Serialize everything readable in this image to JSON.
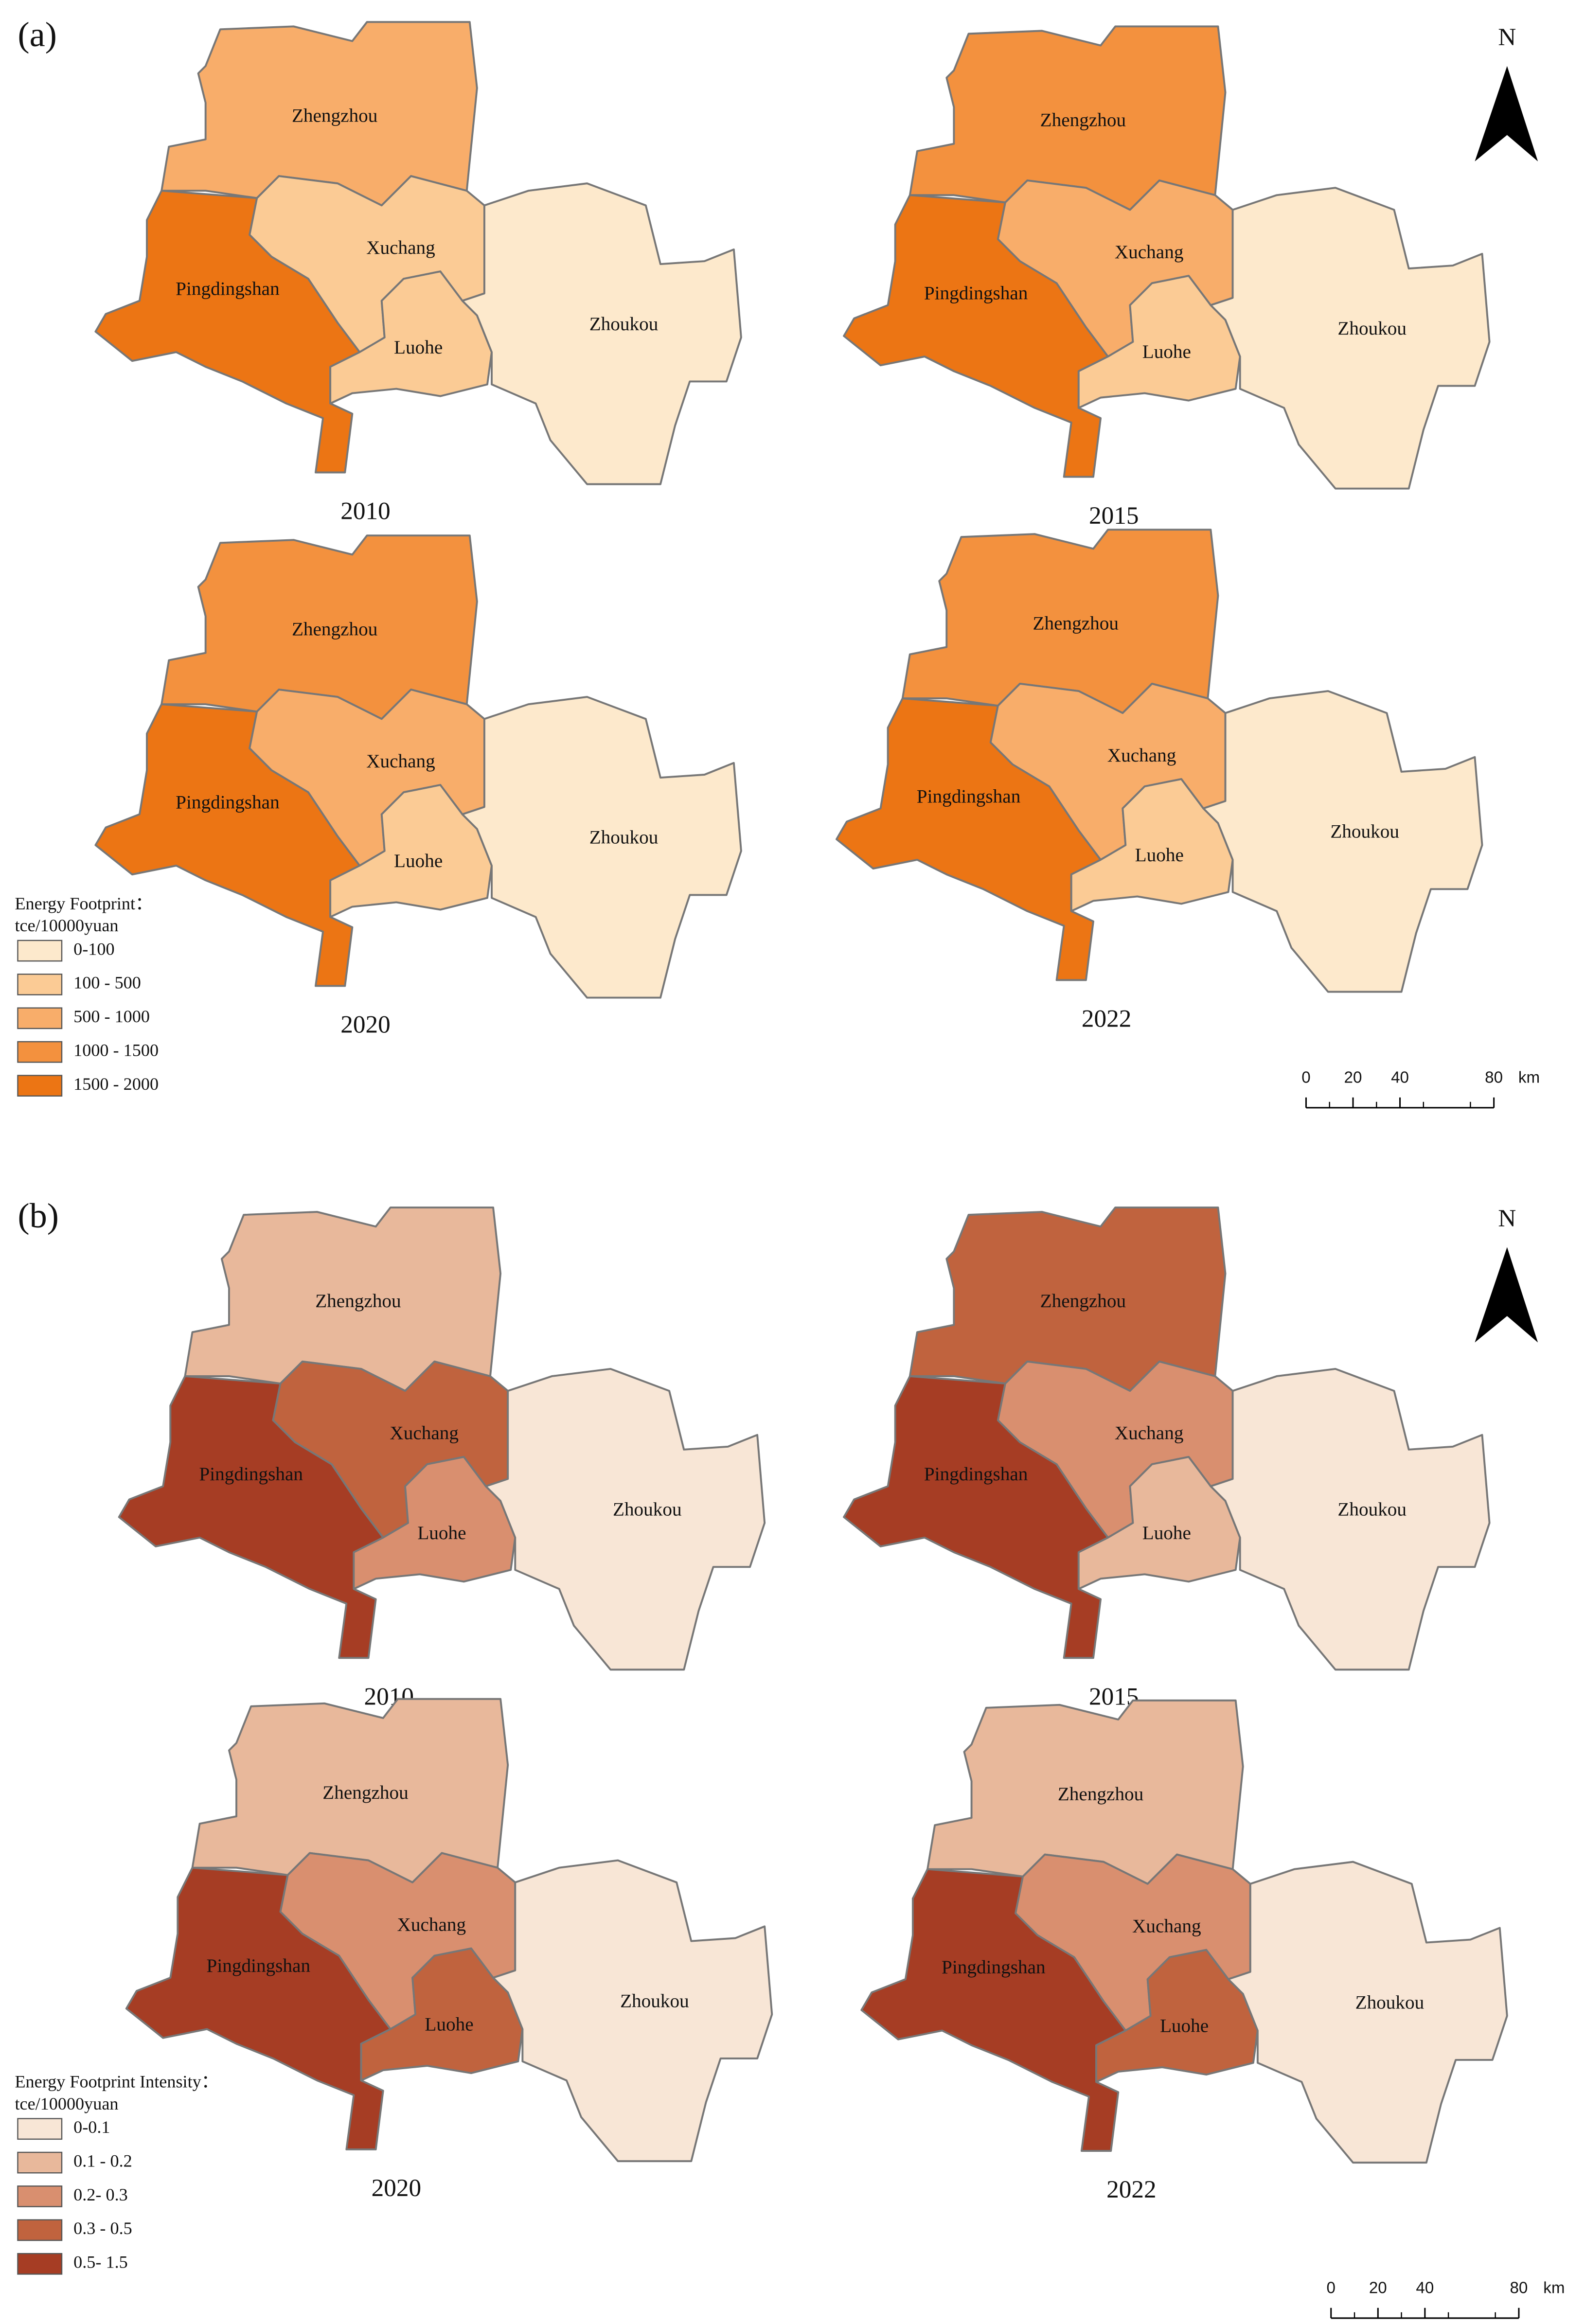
{
  "panels": [
    {
      "label": "(a)",
      "north": "N",
      "legend": {
        "title": "Energy Footprint：",
        "unit": "tce/10000yuan",
        "classes": [
          {
            "label": "0-100",
            "color": "#fde9cc"
          },
          {
            "label": "100 - 500",
            "color": "#fbcb95"
          },
          {
            "label": "500 - 1000",
            "color": "#f8ad6a"
          },
          {
            "label": "1000 - 1500",
            "color": "#f3913e"
          },
          {
            "label": "1500 - 2000",
            "color": "#ec7514"
          }
        ]
      },
      "scale_ticks": [
        0,
        20,
        40,
        80
      ],
      "scale_unit": "km",
      "maps": [
        {
          "year": "2010",
          "regions": [
            {
              "name": "Zhengzhou",
              "fill": "#f8ad6a"
            },
            {
              "name": "Pingdingshan",
              "fill": "#ec7514"
            },
            {
              "name": "Xuchang",
              "fill": "#fbcb95"
            },
            {
              "name": "Luohe",
              "fill": "#fbcb95"
            },
            {
              "name": "Zhoukou",
              "fill": "#fde9cc"
            }
          ]
        },
        {
          "year": "2015",
          "regions": [
            {
              "name": "Zhengzhou",
              "fill": "#f3913e"
            },
            {
              "name": "Pingdingshan",
              "fill": "#ec7514"
            },
            {
              "name": "Xuchang",
              "fill": "#f8ad6a"
            },
            {
              "name": "Luohe",
              "fill": "#fbcb95"
            },
            {
              "name": "Zhoukou",
              "fill": "#fde9cc"
            }
          ]
        },
        {
          "year": "2020",
          "regions": [
            {
              "name": "Zhengzhou",
              "fill": "#f3913e"
            },
            {
              "name": "Pingdingshan",
              "fill": "#ec7514"
            },
            {
              "name": "Xuchang",
              "fill": "#f8ad6a"
            },
            {
              "name": "Luohe",
              "fill": "#fbcb95"
            },
            {
              "name": "Zhoukou",
              "fill": "#fde9cc"
            }
          ]
        },
        {
          "year": "2022",
          "regions": [
            {
              "name": "Zhengzhou",
              "fill": "#f3913e"
            },
            {
              "name": "Pingdingshan",
              "fill": "#ec7514"
            },
            {
              "name": "Xuchang",
              "fill": "#f8ad6a"
            },
            {
              "name": "Luohe",
              "fill": "#fbcb95"
            },
            {
              "name": "Zhoukou",
              "fill": "#fde9cc"
            }
          ]
        }
      ]
    },
    {
      "label": "(b)",
      "north": "N",
      "legend": {
        "title": "Energy Footprint Intensity：",
        "unit": "tce/10000yuan",
        "classes": [
          {
            "label": "0-0.1",
            "color": "#f8e6d6"
          },
          {
            "label": "0.1 - 0.2",
            "color": "#e8b89b"
          },
          {
            "label": "0.2- 0.3",
            "color": "#d98f6f"
          },
          {
            "label": "0.3 - 0.5",
            "color": "#c0633e"
          },
          {
            "label": "0.5- 1.5",
            "color": "#a63d24"
          }
        ]
      },
      "scale_ticks": [
        0,
        20,
        40,
        80
      ],
      "scale_unit": "km",
      "maps": [
        {
          "year": "2010",
          "regions": [
            {
              "name": "Zhengzhou",
              "fill": "#e8b89b"
            },
            {
              "name": "Pingdingshan",
              "fill": "#a63d24"
            },
            {
              "name": "Xuchang",
              "fill": "#c0633e"
            },
            {
              "name": "Luohe",
              "fill": "#d98f6f"
            },
            {
              "name": "Zhoukou",
              "fill": "#f8e6d6"
            }
          ]
        },
        {
          "year": "2015",
          "regions": [
            {
              "name": "Zhengzhou",
              "fill": "#c0633e"
            },
            {
              "name": "Pingdingshan",
              "fill": "#a63d24"
            },
            {
              "name": "Xuchang",
              "fill": "#d98f6f"
            },
            {
              "name": "Luohe",
              "fill": "#e8b89b"
            },
            {
              "name": "Zhoukou",
              "fill": "#f8e6d6"
            }
          ]
        },
        {
          "year": "2020",
          "regions": [
            {
              "name": "Zhengzhou",
              "fill": "#e8b89b"
            },
            {
              "name": "Pingdingshan",
              "fill": "#a63d24"
            },
            {
              "name": "Xuchang",
              "fill": "#d98f6f"
            },
            {
              "name": "Luohe",
              "fill": "#c0633e"
            },
            {
              "name": "Zhoukou",
              "fill": "#f8e6d6"
            }
          ]
        },
        {
          "year": "2022",
          "regions": [
            {
              "name": "Zhengzhou",
              "fill": "#e8b89b"
            },
            {
              "name": "Pingdingshan",
              "fill": "#a63d24"
            },
            {
              "name": "Xuchang",
              "fill": "#d98f6f"
            },
            {
              "name": "Luohe",
              "fill": "#c0633e"
            },
            {
              "name": "Zhoukou",
              "fill": "#f8e6d6"
            }
          ]
        }
      ]
    }
  ]
}
